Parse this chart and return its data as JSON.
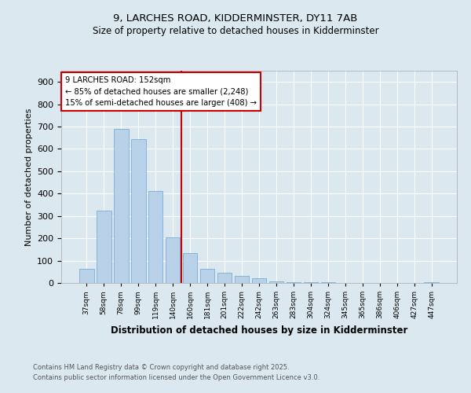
{
  "title1": "9, LARCHES ROAD, KIDDERMINSTER, DY11 7AB",
  "title2": "Size of property relative to detached houses in Kidderminster",
  "xlabel": "Distribution of detached houses by size in Kidderminster",
  "ylabel": "Number of detached properties",
  "categories": [
    "37sqm",
    "58sqm",
    "78sqm",
    "99sqm",
    "119sqm",
    "140sqm",
    "160sqm",
    "181sqm",
    "201sqm",
    "222sqm",
    "242sqm",
    "263sqm",
    "283sqm",
    "304sqm",
    "324sqm",
    "345sqm",
    "365sqm",
    "386sqm",
    "406sqm",
    "427sqm",
    "447sqm"
  ],
  "values": [
    65,
    325,
    690,
    645,
    410,
    205,
    135,
    65,
    45,
    30,
    20,
    8,
    5,
    3,
    2,
    1,
    1,
    0,
    0,
    0,
    5
  ],
  "bar_color": "#b8d0e8",
  "bar_edge_color": "#7aafd4",
  "vline_x": 5.5,
  "vline_color": "#cc0000",
  "annotation_text": "9 LARCHES ROAD: 152sqm\n← 85% of detached houses are smaller (2,248)\n15% of semi-detached houses are larger (408) →",
  "annotation_box_color": "#ffffff",
  "annotation_box_edge": "#cc0000",
  "ylim": [
    0,
    950
  ],
  "yticks": [
    0,
    100,
    200,
    300,
    400,
    500,
    600,
    700,
    800,
    900
  ],
  "footer1": "Contains HM Land Registry data © Crown copyright and database right 2025.",
  "footer2": "Contains public sector information licensed under the Open Government Licence v3.0.",
  "bg_color": "#dce8f0",
  "plot_bg_color": "#dce8f0",
  "fig_width": 6.0,
  "fig_height": 5.0,
  "dpi": 100
}
